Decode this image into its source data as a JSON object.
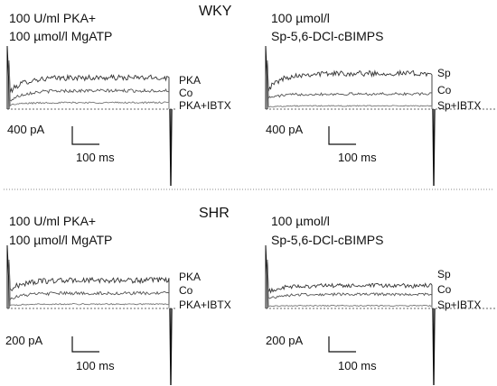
{
  "figure": {
    "rows": [
      {
        "title": "WKY",
        "panels": [
          {
            "condition": [
              "100 U/ml PKA+",
              "100 µmol/l MgATP"
            ],
            "trace_labels": [
              "PKA",
              "Co",
              "PKA+IBTX"
            ],
            "scale_bar": {
              "amplitude": "400 pA",
              "time": "100 ms"
            }
          },
          {
            "condition": [
              "100 µmol/l",
              "Sp-5,6-DCl-cBIMPS"
            ],
            "trace_labels": [
              "Sp",
              "Co",
              "Sp+IBTX"
            ],
            "scale_bar": {
              "amplitude": "400 pA",
              "time": "100 ms"
            }
          }
        ]
      },
      {
        "title": "SHR",
        "panels": [
          {
            "condition": [
              "100 U/ml PKA+",
              "100 µmol/l MgATP"
            ],
            "trace_labels": [
              "PKA",
              "Co",
              "PKA+IBTX"
            ],
            "scale_bar": {
              "amplitude": "200 pA",
              "time": "100 ms"
            }
          },
          {
            "condition": [
              "100 µmol/l",
              "Sp-5,6-DCl-cBIMPS"
            ],
            "trace_labels": [
              "Sp",
              "Co",
              "Sp+IBTX"
            ],
            "scale_bar": {
              "amplitude": "200 pA",
              "time": "100 ms"
            }
          }
        ]
      }
    ]
  },
  "chart_data": [
    {
      "type": "line",
      "group": "WKY",
      "panel": "PKA",
      "xlabel": "",
      "ylabel": "",
      "ylim": [
        0,
        1
      ],
      "series": [
        {
          "name": "PKA",
          "start": 0.3,
          "end": 0.58,
          "noise": 0.05
        },
        {
          "name": "Co",
          "start": 0.14,
          "end": 0.34,
          "noise": 0.03
        },
        {
          "name": "PKA+IBTX",
          "start": 0.07,
          "end": 0.12,
          "noise": 0.015
        }
      ]
    },
    {
      "type": "line",
      "group": "WKY",
      "panel": "Sp",
      "xlabel": "",
      "ylabel": "",
      "ylim": [
        0,
        1
      ],
      "series": [
        {
          "name": "Sp",
          "start": 0.35,
          "end": 0.66,
          "noise": 0.05
        },
        {
          "name": "Co",
          "start": 0.2,
          "end": 0.28,
          "noise": 0.025
        },
        {
          "name": "Sp+IBTX",
          "start": 0.04,
          "end": 0.06,
          "noise": 0.01
        }
      ]
    },
    {
      "type": "line",
      "group": "SHR",
      "panel": "PKA",
      "xlabel": "",
      "ylabel": "",
      "ylim": [
        0,
        1
      ],
      "series": [
        {
          "name": "PKA",
          "start": 0.33,
          "end": 0.52,
          "noise": 0.05
        },
        {
          "name": "Co",
          "start": 0.17,
          "end": 0.28,
          "noise": 0.03
        },
        {
          "name": "PKA+IBTX",
          "start": 0.05,
          "end": 0.08,
          "noise": 0.012
        }
      ]
    },
    {
      "type": "line",
      "group": "SHR",
      "panel": "Sp",
      "xlabel": "",
      "ylabel": "",
      "ylim": [
        0,
        1
      ],
      "series": [
        {
          "name": "Sp",
          "start": 0.3,
          "end": 0.42,
          "noise": 0.04
        },
        {
          "name": "Co",
          "start": 0.18,
          "end": 0.26,
          "noise": 0.025
        },
        {
          "name": "Sp+IBTX",
          "start": 0.04,
          "end": 0.05,
          "noise": 0.01
        }
      ]
    }
  ]
}
